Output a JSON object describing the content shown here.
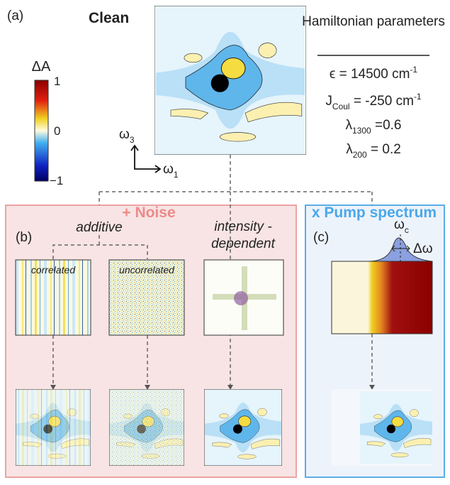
{
  "panel_a": {
    "label": "(a)",
    "title": "Clean",
    "params_header": "Hamiltonian parameters",
    "params": [
      {
        "main": "ϵ = 14500 cm",
        "sup": "-1"
      },
      {
        "main": "J",
        "sub": "Coul",
        "rest": " = -250 cm",
        "sup": "-1"
      },
      {
        "main": "λ",
        "sub": "1300",
        "rest": " =0.6"
      },
      {
        "main": "λ",
        "sub": "200",
        "rest": " = 0.2"
      }
    ],
    "colorbar": {
      "title": "ΔA",
      "ticks": [
        "1",
        "0",
        "−1"
      ]
    },
    "axes": {
      "y": {
        "main": "ω",
        "sub": "3"
      },
      "x": {
        "main": "ω",
        "sub": "1"
      }
    }
  },
  "panel_b": {
    "label": "(b)",
    "header": "+ Noise",
    "additive": "additive",
    "intensity": [
      "intensity -",
      "dependent"
    ],
    "images": [
      "correlated",
      "uncorrelated"
    ]
  },
  "panel_c": {
    "label": "(c)",
    "header": "x Pump spectrum",
    "omega_c": {
      "main": "ω",
      "sub": "c"
    },
    "delta_omega": "Δω"
  }
}
